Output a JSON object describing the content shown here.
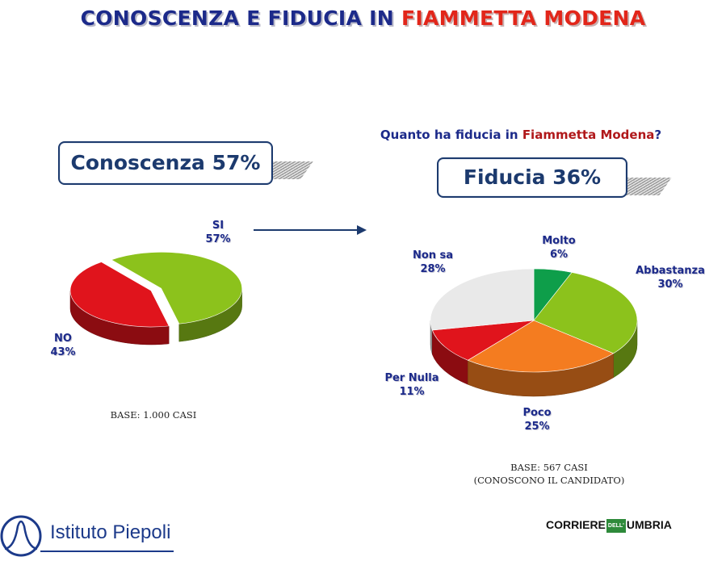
{
  "header": {
    "title_prefix": "CONOSCENZA E FIDUCIA IN",
    "title_name": "FIAMMETTA MODENA"
  },
  "question": {
    "prefix": "Quanto ha fiducia in",
    "name": "Fiammetta Modena",
    "suffix": "?"
  },
  "kpi_left": "Conoscenza 57%",
  "kpi_right": "Fiducia 36%",
  "chart_data": [
    {
      "type": "pie",
      "title": "",
      "categories": [
        "SI",
        "NO"
      ],
      "values": [
        57,
        43
      ],
      "labels": [
        "57%",
        "43%"
      ],
      "colors": [
        "#8cc21c",
        "#e0141c"
      ],
      "base": "BASE: 1.000 CASI"
    },
    {
      "type": "pie",
      "title": "Quanto ha fiducia in Fiammetta Modena?",
      "categories": [
        "Molto",
        "Abbastanza",
        "Poco",
        "Per Nulla",
        "Non sa"
      ],
      "values": [
        6,
        30,
        25,
        11,
        28
      ],
      "labels": [
        "6%",
        "30%",
        "25%",
        "11%",
        "28%"
      ],
      "colors": [
        "#0e9e4a",
        "#8cc21c",
        "#f47c20",
        "#e0141c",
        "#e9e9e9"
      ],
      "base_line1": "BASE: 567 CASI",
      "base_line2": "(CONOSCONO IL CANDIDATO)"
    }
  ],
  "footer": {
    "logo_left": "Istituto Piepoli",
    "logo_right_a": "CORRIERE",
    "logo_right_mid": "DELL'",
    "logo_right_b": "UMBRIA"
  }
}
